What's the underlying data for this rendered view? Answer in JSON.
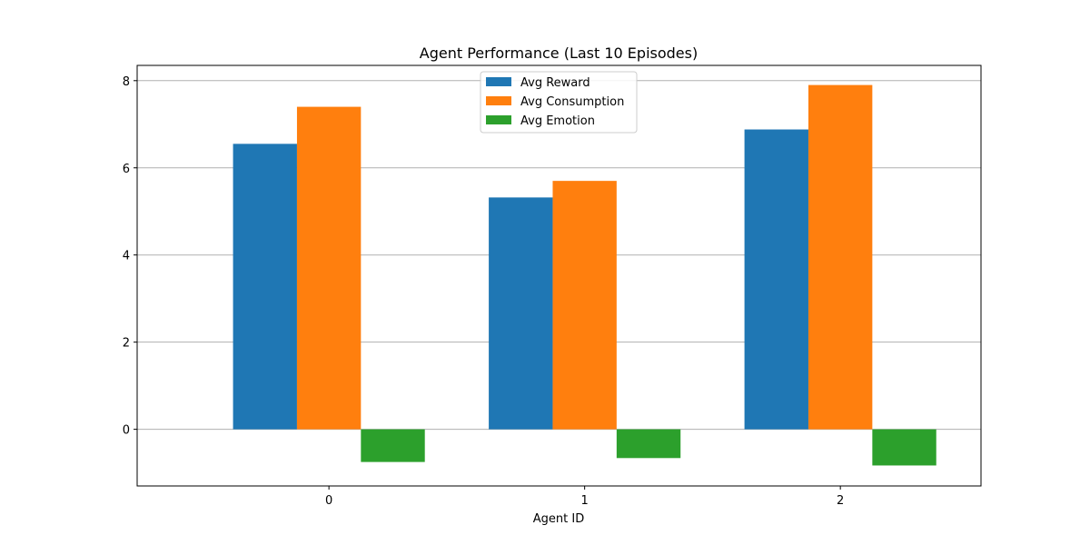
{
  "chart_data": {
    "type": "bar",
    "title": "Agent Performance (Last 10 Episodes)",
    "xlabel": "Agent ID",
    "ylabel": "",
    "categories": [
      "0",
      "1",
      "2"
    ],
    "series": [
      {
        "name": "Avg Reward",
        "color": "#1f77b4",
        "values": [
          6.55,
          5.32,
          6.88
        ]
      },
      {
        "name": "Avg Consumption",
        "color": "#ff7f0e",
        "values": [
          7.4,
          5.7,
          7.9
        ]
      },
      {
        "name": "Avg Emotion",
        "color": "#2ca02c",
        "values": [
          -0.75,
          -0.66,
          -0.83
        ]
      }
    ],
    "ylim": [
      -1.3,
      8.35
    ],
    "yticks": [
      0,
      2,
      4,
      6,
      8
    ],
    "grid": "y",
    "legend_position": "upper-center"
  }
}
